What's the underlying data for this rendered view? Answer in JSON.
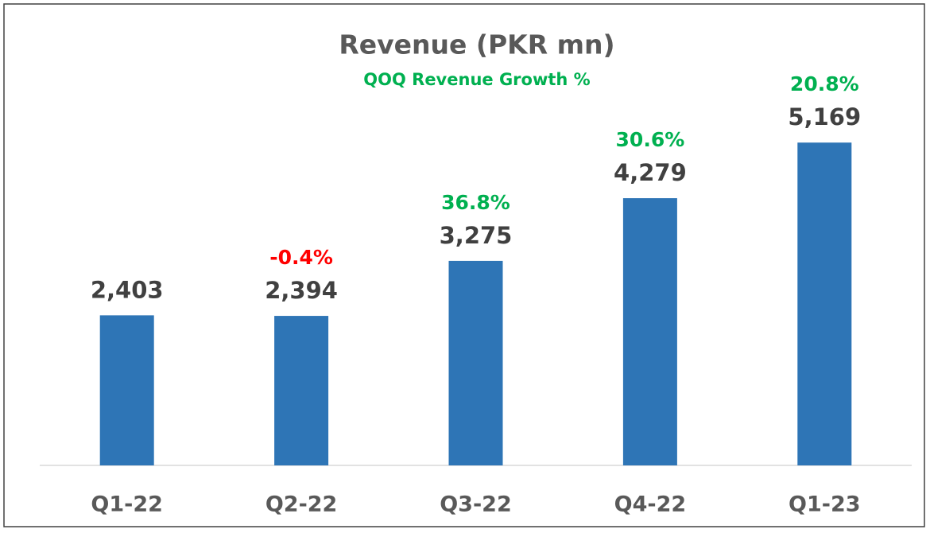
{
  "chart_data": {
    "type": "bar",
    "title": "Revenue (PKR mn)",
    "categories": [
      "Q1-22",
      "Q2-22",
      "Q3-22",
      "Q4-22",
      "Q1-23"
    ],
    "values": [
      2403,
      2394,
      3275,
      4279,
      5169
    ],
    "value_labels": [
      "2,403",
      "2,394",
      "3,275",
      "4,279",
      "5,169"
    ],
    "color": "#2e75b6",
    "ylim": [
      0,
      6000
    ],
    "growth": {
      "name": "QOQ Revenue Growth %",
      "values": [
        null,
        -0.4,
        36.8,
        30.6,
        20.8
      ],
      "value_labels": [
        null,
        "-0.4%",
        "36.8%",
        "30.6%",
        "20.8%"
      ],
      "positive_color": "#00b050",
      "negative_color": "#ff0000"
    }
  }
}
